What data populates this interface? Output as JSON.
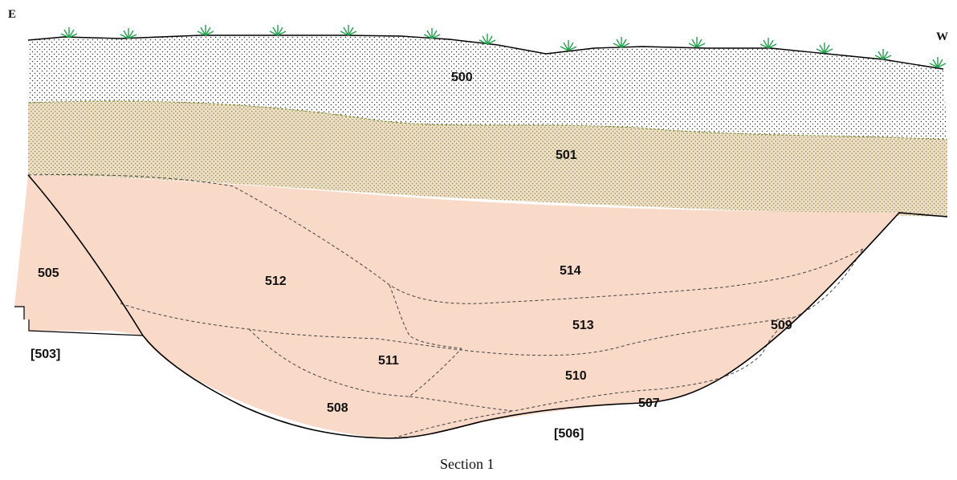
{
  "orientation": {
    "left": "E",
    "right": "W"
  },
  "caption": "Section 1",
  "contexts": [
    {
      "id": "500",
      "label": "500"
    },
    {
      "id": "501",
      "label": "501"
    },
    {
      "id": "505",
      "label": "505"
    },
    {
      "id": "512",
      "label": "512"
    },
    {
      "id": "514",
      "label": "514"
    },
    {
      "id": "513",
      "label": "513"
    },
    {
      "id": "509",
      "label": "509"
    },
    {
      "id": "511",
      "label": "511"
    },
    {
      "id": "510",
      "label": "510"
    },
    {
      "id": "508",
      "label": "508"
    },
    {
      "id": "507",
      "label": "507"
    }
  ],
  "cuts": [
    {
      "id": "503",
      "label": "[503]"
    },
    {
      "id": "506",
      "label": "[506]"
    }
  ],
  "colors": {
    "fill_topsoil": "#ffffff",
    "fill_subsoil": "#e8dcc3",
    "fill_context": "#f9d9c7",
    "grass": "#1fa34a",
    "subsoil_boundary": "#7a8a2a"
  }
}
